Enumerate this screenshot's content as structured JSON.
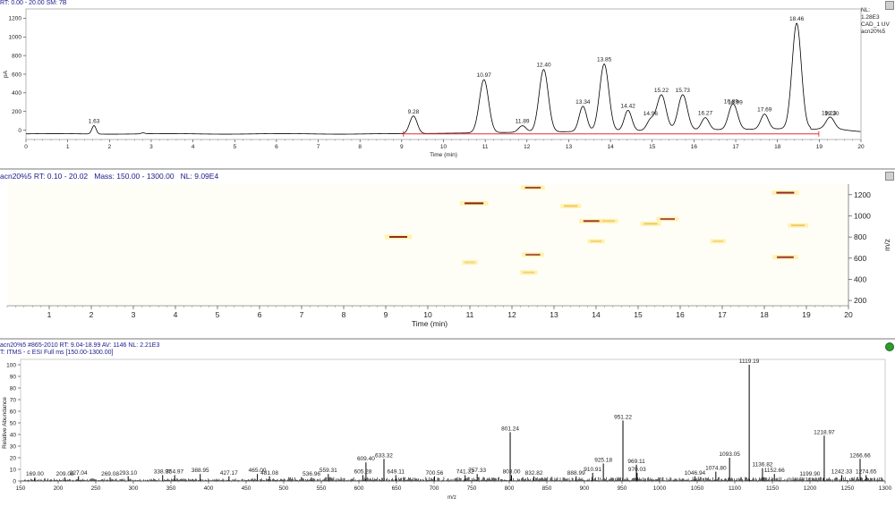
{
  "chromatogram": {
    "header": "RT: 0.00 - 20.00   SM: 7B",
    "nl_label": "NL:",
    "nl_value": "1.28E3",
    "channel": "CAD_1  UV",
    "file": "acn20%5"
  },
  "heatmap": {
    "header_file": "acn20%5",
    "header_rt": "RT: 0.10 - 20.02",
    "header_mass": "Mass: 150.00 - 1300.00",
    "header_nl": "NL: 9.09E4"
  },
  "spectrum": {
    "header_line1": "acn20%5 #865-2010   RT: 9.04-18.99   AV: 1146   NL: 2.21E3",
    "header_line2": "T: ITMS - c ESI Full ms [150.00-1300.00]"
  },
  "chart_data": [
    {
      "type": "line",
      "xlabel": "Time (min)",
      "ylabel": "pA",
      "xlim": [
        0,
        20
      ],
      "ylim": [
        -100,
        1300
      ],
      "xticks": [
        0,
        1,
        2,
        3,
        4,
        5,
        6,
        7,
        8,
        9,
        10,
        11,
        12,
        13,
        14,
        15,
        16,
        17,
        18,
        19,
        20
      ],
      "yticks": [
        0,
        200,
        400,
        600,
        800,
        1000,
        1200
      ],
      "peaks": [
        {
          "rt": 1.63,
          "label": "1.63",
          "height": 50
        },
        {
          "rt": 2.8,
          "label": "",
          "height": -30
        },
        {
          "rt": 9.28,
          "label": "9.28",
          "height": 150
        },
        {
          "rt": 10.97,
          "label": "10.97",
          "height": 530
        },
        {
          "rt": 11.89,
          "label": "11.89",
          "height": 30
        },
        {
          "rt": 12.4,
          "label": "12.40",
          "height": 630
        },
        {
          "rt": 13.34,
          "label": "13.34",
          "height": 230
        },
        {
          "rt": 13.85,
          "label": "13.85",
          "height": 680
        },
        {
          "rt": 14.42,
          "label": "14.42",
          "height": 180
        },
        {
          "rt": 14.96,
          "label": "14.96",
          "height": 70
        },
        {
          "rt": 15.22,
          "label": "15.22",
          "height": 340
        },
        {
          "rt": 15.73,
          "label": "15.73",
          "height": 340
        },
        {
          "rt": 16.27,
          "label": "16.27",
          "height": 90
        },
        {
          "rt": 16.89,
          "label": "16.89",
          "height": 130
        },
        {
          "rt": 16.99,
          "label": "16.99",
          "height": 110
        },
        {
          "rt": 17.69,
          "label": "17.69",
          "height": 120
        },
        {
          "rt": 18.46,
          "label": "18.46",
          "height": 1090
        },
        {
          "rt": 19.23,
          "label": "19.23",
          "height": 30
        },
        {
          "rt": 19.3,
          "label": "19.30",
          "height": 20
        }
      ],
      "marked_range": [
        9.04,
        18.99
      ]
    },
    {
      "type": "heatmap",
      "xlabel": "Time (min)",
      "ylabel": "m/z",
      "xlim": [
        0,
        20
      ],
      "ylim": [
        150,
        1300
      ],
      "xticks": [
        1,
        2,
        3,
        4,
        5,
        6,
        7,
        8,
        9,
        10,
        11,
        12,
        13,
        14,
        15,
        16,
        17,
        18,
        19,
        20
      ],
      "yticks": [
        200,
        400,
        600,
        800,
        1000,
        1200
      ],
      "spots": [
        {
          "rt": 9.3,
          "mz": 801,
          "intensity": 0.9
        },
        {
          "rt": 11.1,
          "mz": 1119,
          "intensity": 1.0
        },
        {
          "rt": 12.5,
          "mz": 1267,
          "intensity": 0.7
        },
        {
          "rt": 12.5,
          "mz": 633,
          "intensity": 0.6
        },
        {
          "rt": 12.4,
          "mz": 465,
          "intensity": 0.3
        },
        {
          "rt": 13.4,
          "mz": 1093,
          "intensity": 0.5
        },
        {
          "rt": 13.9,
          "mz": 951,
          "intensity": 0.8
        },
        {
          "rt": 14.3,
          "mz": 951,
          "intensity": 0.4
        },
        {
          "rt": 15.3,
          "mz": 925,
          "intensity": 0.5
        },
        {
          "rt": 15.7,
          "mz": 970,
          "intensity": 0.6
        },
        {
          "rt": 18.5,
          "mz": 1219,
          "intensity": 0.9
        },
        {
          "rt": 18.5,
          "mz": 609,
          "intensity": 0.8
        },
        {
          "rt": 18.8,
          "mz": 910,
          "intensity": 0.5
        },
        {
          "rt": 11.0,
          "mz": 560,
          "intensity": 0.2
        },
        {
          "rt": 14.0,
          "mz": 760,
          "intensity": 0.3
        },
        {
          "rt": 16.9,
          "mz": 760,
          "intensity": 0.2
        }
      ]
    },
    {
      "type": "bar",
      "xlabel": "m/z",
      "ylabel": "Relative Abundance",
      "xlim": [
        150,
        1300
      ],
      "ylim": [
        0,
        100
      ],
      "xticks": [
        150,
        200,
        250,
        300,
        350,
        400,
        450,
        500,
        550,
        600,
        650,
        700,
        750,
        800,
        850,
        900,
        950,
        1000,
        1050,
        1100,
        1150,
        1200,
        1250,
        1300
      ],
      "yticks": [
        0,
        10,
        20,
        30,
        40,
        50,
        60,
        70,
        80,
        90,
        100
      ],
      "peaks": [
        {
          "mz": 169.0,
          "label": "169.00",
          "value": 3
        },
        {
          "mz": 209.08,
          "label": "209.08",
          "value": 3
        },
        {
          "mz": 227.04,
          "label": "227.04",
          "value": 4
        },
        {
          "mz": 269.08,
          "label": "269.08",
          "value": 3
        },
        {
          "mz": 293.1,
          "label": "293.10",
          "value": 4
        },
        {
          "mz": 338.97,
          "label": "338.97",
          "value": 5
        },
        {
          "mz": 354.97,
          "label": "354.97",
          "value": 5
        },
        {
          "mz": 388.95,
          "label": "388.95",
          "value": 6
        },
        {
          "mz": 427.17,
          "label": "427.17",
          "value": 4
        },
        {
          "mz": 465.0,
          "label": "465.00",
          "value": 6
        },
        {
          "mz": 481.08,
          "label": "481.08",
          "value": 4
        },
        {
          "mz": 536.96,
          "label": "536.96",
          "value": 3
        },
        {
          "mz": 559.31,
          "label": "559.31",
          "value": 6
        },
        {
          "mz": 605.28,
          "label": "605.28",
          "value": 5
        },
        {
          "mz": 609.4,
          "label": "609.40",
          "value": 16
        },
        {
          "mz": 633.32,
          "label": "633.32",
          "value": 19
        },
        {
          "mz": 649.11,
          "label": "649.11",
          "value": 5
        },
        {
          "mz": 700.56,
          "label": "700.56",
          "value": 4
        },
        {
          "mz": 741.32,
          "label": "741.32",
          "value": 5
        },
        {
          "mz": 757.33,
          "label": "757.33",
          "value": 6
        },
        {
          "mz": 801.24,
          "label": "801.24",
          "value": 42
        },
        {
          "mz": 803.0,
          "label": "803.00",
          "value": 5
        },
        {
          "mz": 832.82,
          "label": "832.82",
          "value": 4
        },
        {
          "mz": 888.99,
          "label": "888.99",
          "value": 4
        },
        {
          "mz": 910.91,
          "label": "910.91",
          "value": 7
        },
        {
          "mz": 925.18,
          "label": "925.18",
          "value": 15
        },
        {
          "mz": 951.22,
          "label": "951.22",
          "value": 52
        },
        {
          "mz": 969.11,
          "label": "969.11",
          "value": 14
        },
        {
          "mz": 970.03,
          "label": "970.03",
          "value": 7
        },
        {
          "mz": 1046.94,
          "label": "1046.94",
          "value": 4
        },
        {
          "mz": 1074.8,
          "label": "1074.80",
          "value": 8
        },
        {
          "mz": 1093.05,
          "label": "1093.05",
          "value": 20
        },
        {
          "mz": 1119.19,
          "label": "1119.19",
          "value": 100
        },
        {
          "mz": 1136.82,
          "label": "1136.82",
          "value": 11
        },
        {
          "mz": 1152.66,
          "label": "1152.66",
          "value": 6
        },
        {
          "mz": 1199.9,
          "label": "1199.90",
          "value": 3
        },
        {
          "mz": 1218.97,
          "label": "1218.97",
          "value": 39
        },
        {
          "mz": 1242.33,
          "label": "1242.33",
          "value": 5
        },
        {
          "mz": 1266.66,
          "label": "1266.66",
          "value": 19
        },
        {
          "mz": 1274.65,
          "label": "1274.65",
          "value": 5
        }
      ]
    }
  ]
}
